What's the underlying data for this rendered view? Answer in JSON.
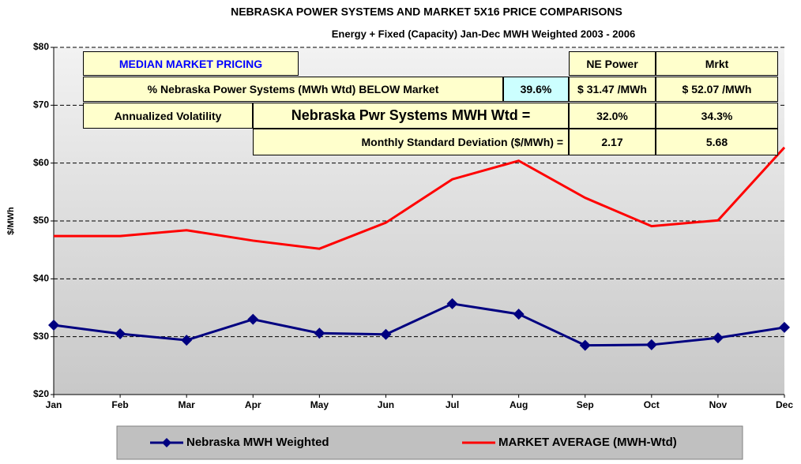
{
  "chart_data": {
    "type": "line",
    "title": "NEBRASKA POWER SYSTEMS AND MARKET 5X16 PRICE COMPARISONS",
    "subtitle": "Energy + Fixed (Capacity) Jan-Dec MWH Weighted 2003 - 2006",
    "y_label": "$/MWh",
    "categories": [
      "Jan",
      "Feb",
      "Mar",
      "Apr",
      "May",
      "Jun",
      "Jul",
      "Aug",
      "Sep",
      "Oct",
      "Nov",
      "Dec"
    ],
    "series": [
      {
        "name": "Nebraska MWH Weighted",
        "color": "#000080",
        "marker": "diamond",
        "values": [
          32.0,
          30.5,
          29.4,
          33.0,
          30.6,
          30.4,
          35.7,
          33.9,
          28.5,
          28.6,
          29.8,
          31.6
        ]
      },
      {
        "name": "MARKET AVERAGE (MWH-Wtd)",
        "color": "#ff0000",
        "values": [
          47.4,
          47.4,
          48.4,
          46.6,
          45.2,
          49.7,
          57.2,
          60.4,
          54.0,
          49.1,
          50.1,
          62.7
        ]
      }
    ],
    "ylim": [
      20,
      80
    ],
    "yticks": [
      {
        "value": 20,
        "label": "$20"
      },
      {
        "value": 30,
        "label": "$30"
      },
      {
        "value": 40,
        "label": "$40"
      },
      {
        "value": 50,
        "label": "$50"
      },
      {
        "value": 60,
        "label": "$60"
      },
      {
        "value": 70,
        "label": "$70"
      },
      {
        "value": 80,
        "label": "$80"
      }
    ],
    "grid": true,
    "legend": "bottom"
  },
  "table": {
    "header": "MEDIAN MARKET PRICING",
    "col1": "NE Power",
    "col2": "Mrkt",
    "row1": {
      "label": "% Nebraska Power Systems (MWh Wtd)  BELOW  Market",
      "value": "39.6%",
      "ne": "$ 31.47 /MWh",
      "mrkt": "$ 52.07 /MWh"
    },
    "row2": {
      "label": "Annualized Volatility",
      "sub": "Nebraska Pwr Systems MWH Wtd =",
      "ne": "32.0%",
      "mrkt": "34.3%"
    },
    "row3": {
      "label": "Monthly Standard Deviation ($/MWh) =",
      "ne": "2.17",
      "mrkt": "5.68"
    }
  }
}
